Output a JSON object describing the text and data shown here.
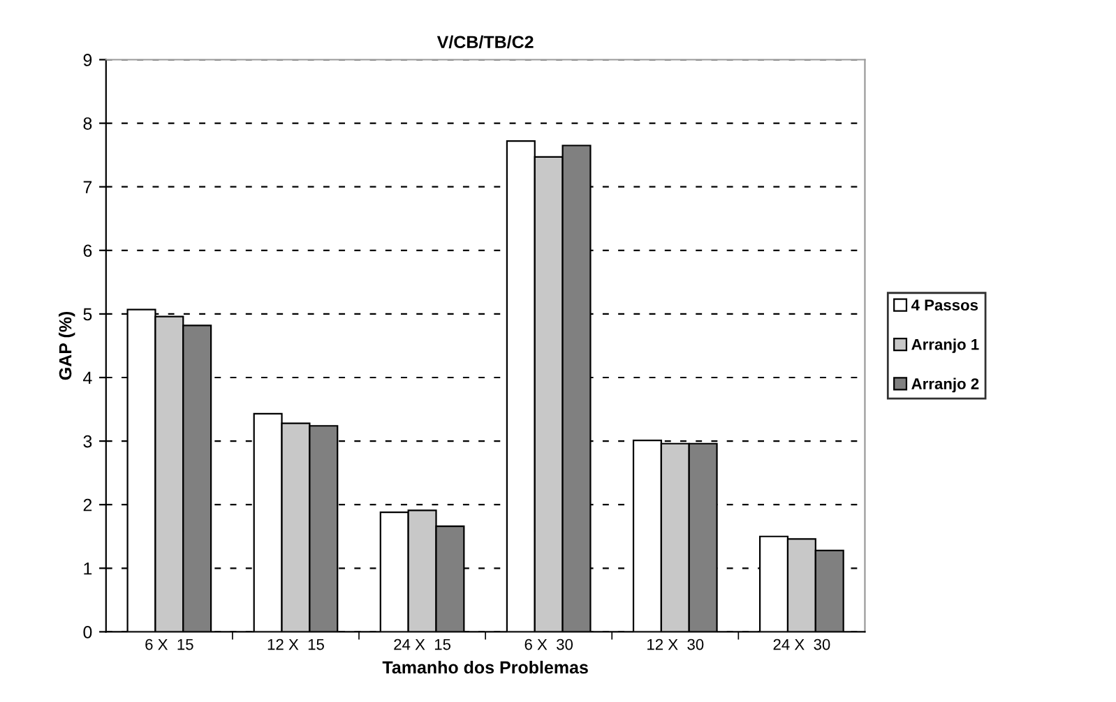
{
  "chart_data": {
    "type": "bar",
    "title": "V/CB/TB/C2",
    "xlabel": "Tamanho dos Problemas",
    "ylabel": "GAP (%)",
    "categories": [
      "6 X  15",
      "12 X  15",
      "24 X  15",
      "6 X  30",
      "12 X  30",
      "24 X  30"
    ],
    "series": [
      {
        "name": "4 Passos",
        "color": "#ffffff",
        "values": [
          5.07,
          3.43,
          1.88,
          7.72,
          3.01,
          1.5
        ]
      },
      {
        "name": "Arranjo 1",
        "color": "#c8c8c8",
        "values": [
          4.96,
          3.28,
          1.91,
          7.47,
          2.96,
          1.46
        ]
      },
      {
        "name": "Arranjo 2",
        "color": "#808080",
        "values": [
          4.82,
          3.24,
          1.66,
          7.65,
          2.96,
          1.28
        ]
      }
    ],
    "ylim": [
      0,
      9
    ],
    "yticks": [
      0,
      1,
      2,
      3,
      4,
      5,
      6,
      7,
      8,
      9
    ],
    "grid": "y",
    "legend": "right"
  }
}
